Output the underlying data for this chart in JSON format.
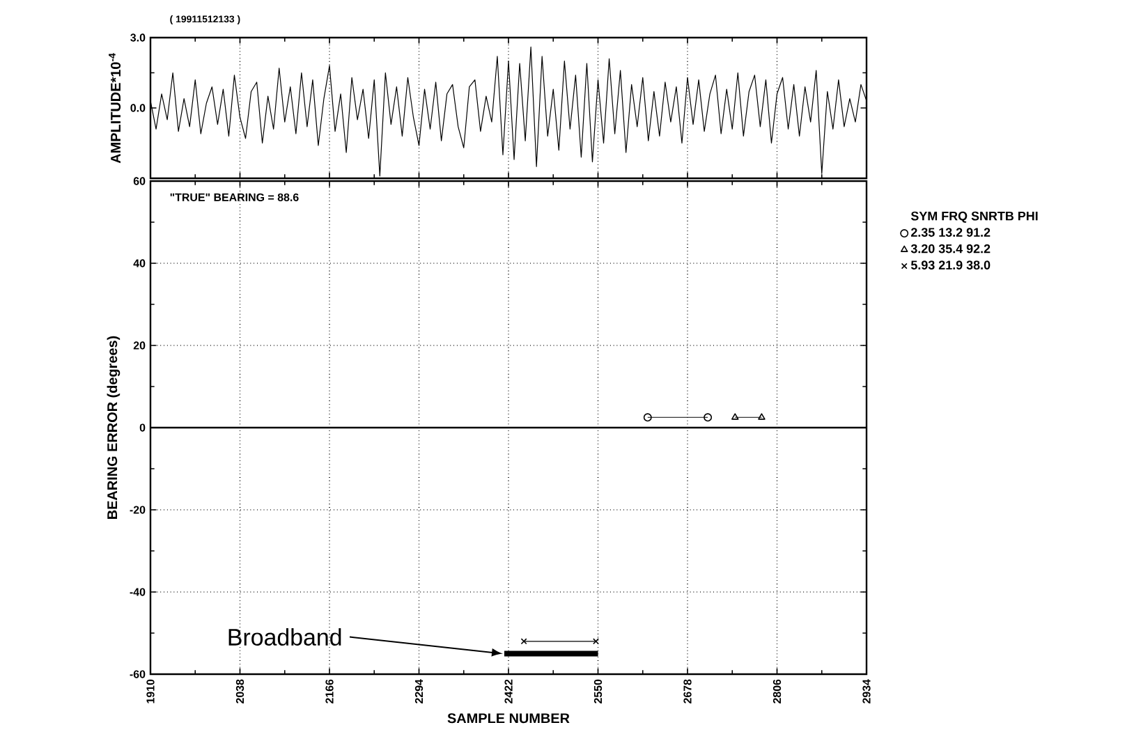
{
  "chart_data": [
    {
      "type": "line",
      "title": "( 19911512133 )",
      "ylabel": "AMPLITUDE*10$^{-4}$",
      "color": "#000000",
      "xlim": [
        1910,
        2934
      ],
      "xticks": [
        1910,
        2038,
        2166,
        2294,
        2422,
        2550,
        2678,
        2806,
        2934
      ],
      "ylim": [
        -3,
        3
      ],
      "yticks": [
        {
          "value": 3,
          "label": "3.0"
        },
        {
          "value": 0,
          "label": "0.0"
        }
      ],
      "grid": "x",
      "tick_labels": "y",
      "x": [
        1910,
        1918,
        1926,
        1934,
        1942,
        1950,
        1958,
        1966,
        1974,
        1982,
        1990,
        1998,
        2006,
        2014,
        2022,
        2030,
        2038,
        2046,
        2054,
        2062,
        2070,
        2078,
        2086,
        2094,
        2102,
        2110,
        2118,
        2126,
        2134,
        2142,
        2150,
        2158,
        2166,
        2174,
        2182,
        2190,
        2198,
        2206,
        2214,
        2222,
        2230,
        2238,
        2246,
        2254,
        2262,
        2270,
        2278,
        2286,
        2294,
        2302,
        2310,
        2318,
        2326,
        2334,
        2342,
        2350,
        2358,
        2366,
        2374,
        2382,
        2390,
        2398,
        2406,
        2414,
        2422,
        2430,
        2438,
        2446,
        2454,
        2462,
        2470,
        2478,
        2486,
        2494,
        2502,
        2510,
        2518,
        2526,
        2534,
        2542,
        2550,
        2558,
        2566,
        2574,
        2582,
        2590,
        2598,
        2606,
        2614,
        2622,
        2630,
        2638,
        2646,
        2654,
        2662,
        2670,
        2678,
        2686,
        2694,
        2702,
        2710,
        2718,
        2726,
        2734,
        2742,
        2750,
        2758,
        2766,
        2774,
        2782,
        2790,
        2798,
        2806,
        2814,
        2822,
        2830,
        2838,
        2846,
        2854,
        2862,
        2870,
        2878,
        2886,
        2894,
        2902,
        2910,
        2918,
        2926,
        2934
      ],
      "values": [
        0.3,
        -0.9,
        0.6,
        -0.5,
        1.5,
        -1.0,
        0.4,
        -0.8,
        1.2,
        -1.1,
        0.2,
        0.9,
        -0.7,
        0.8,
        -1.2,
        1.4,
        -0.4,
        -1.3,
        0.7,
        1.1,
        -1.5,
        0.5,
        -0.9,
        1.7,
        -0.6,
        0.9,
        -1.1,
        1.5,
        -0.8,
        1.2,
        -1.6,
        0.4,
        1.8,
        -1.0,
        0.6,
        -1.9,
        1.3,
        -0.5,
        0.8,
        -1.3,
        1.2,
        -2.9,
        1.5,
        -0.7,
        0.9,
        -1.2,
        1.3,
        -0.4,
        -1.6,
        0.8,
        -0.9,
        1.1,
        -1.4,
        0.6,
        1.0,
        -0.8,
        -1.7,
        0.9,
        1.2,
        -1.0,
        0.5,
        -0.6,
        2.2,
        -2.0,
        2.0,
        -2.2,
        1.9,
        -1.4,
        2.6,
        -2.5,
        2.2,
        -1.2,
        0.8,
        -1.8,
        2.0,
        -0.9,
        1.4,
        -2.1,
        1.9,
        -2.3,
        1.2,
        -1.5,
        2.1,
        -1.1,
        1.6,
        -1.9,
        1.0,
        -0.8,
        1.3,
        -1.4,
        0.7,
        -1.2,
        1.1,
        -0.6,
        0.9,
        -1.5,
        1.3,
        -0.7,
        1.2,
        -1.0,
        0.6,
        1.4,
        -1.1,
        0.8,
        -0.9,
        1.5,
        -1.2,
        0.7,
        1.4,
        -0.8,
        1.2,
        -1.5,
        0.6,
        1.3,
        -0.9,
        1.0,
        -1.2,
        0.9,
        -0.6,
        1.6,
        -2.8,
        0.7,
        -0.9,
        1.2,
        -0.8,
        0.4,
        -0.6,
        1.0,
        0.3
      ]
    },
    {
      "type": "line",
      "xlabel": "SAMPLE NUMBER",
      "ylabel": "BEARING ERROR (degrees)",
      "legend_title": "SYM FRQ SNRTB PHI",
      "legend": "right",
      "xlim": [
        1910,
        2934
      ],
      "xticks": [
        1910,
        2038,
        2166,
        2294,
        2422,
        2550,
        2678,
        2806,
        2934
      ],
      "ylim": [
        -60,
        60
      ],
      "yticks": [
        -60,
        -40,
        -20,
        0,
        20,
        40,
        60
      ],
      "grid": true,
      "ref_lines": [
        {
          "axis": "y",
          "value": 0
        }
      ],
      "annotations": [
        "\"TRUE\" BEARING =  88.6",
        {
          "text": "Broadband",
          "x": 2416,
          "y": -55
        }
      ],
      "series": [
        {
          "name": "2.35  13.2  91.2",
          "color": "#000000",
          "marker": "circle",
          "x": [
            2621,
            2707
          ],
          "values": [
            2.5,
            2.5
          ]
        },
        {
          "name": "3.20  35.4  92.2",
          "color": "#000000",
          "marker": "triangle",
          "x": [
            2746,
            2784
          ],
          "values": [
            2.5,
            2.5
          ]
        },
        {
          "name": "5.93  21.9  38.0",
          "color": "#000000",
          "marker": "cross",
          "x": [
            2444,
            2547
          ],
          "values": [
            -52,
            -52
          ]
        },
        {
          "color": "#000000",
          "marker": "none",
          "x": [
            2416,
            2550
          ],
          "values": [
            -55,
            -55
          ]
        }
      ]
    }
  ]
}
